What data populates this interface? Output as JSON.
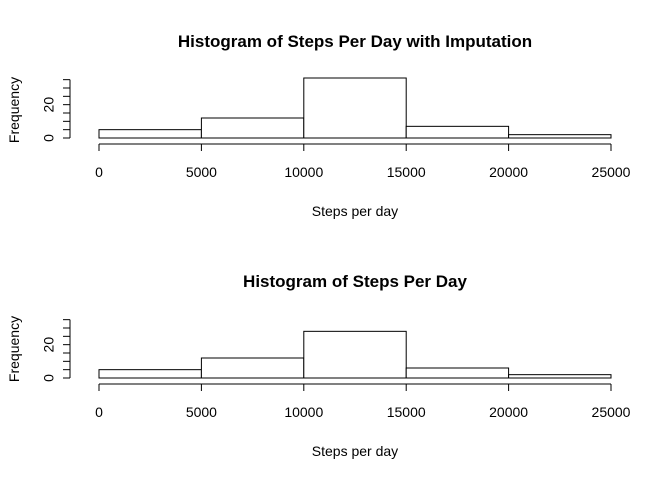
{
  "chart_data": [
    {
      "type": "bar",
      "title": "Histogram of Steps Per Day with Imputation",
      "xlabel": "Steps per day",
      "ylabel": "Frequency",
      "bins": [
        {
          "start": 0,
          "end": 5000,
          "count": 5
        },
        {
          "start": 5000,
          "end": 10000,
          "count": 12
        },
        {
          "start": 10000,
          "end": 15000,
          "count": 36
        },
        {
          "start": 15000,
          "end": 20000,
          "count": 7
        },
        {
          "start": 20000,
          "end": 25000,
          "count": 2
        }
      ],
      "xlim": [
        0,
        25000
      ],
      "ylim": [
        0,
        36
      ],
      "x_ticks": [
        "0",
        "5000",
        "10000",
        "15000",
        "20000",
        "25000"
      ],
      "y_ticks": [
        "0",
        "20"
      ],
      "y_minor_max": 35,
      "grid": false,
      "color": "#ffffff",
      "edge_color": "#000000"
    },
    {
      "type": "bar",
      "title": "Histogram of Steps Per Day",
      "xlabel": "Steps per day",
      "ylabel": "Frequency",
      "bins": [
        {
          "start": 0,
          "end": 5000,
          "count": 5
        },
        {
          "start": 5000,
          "end": 10000,
          "count": 12
        },
        {
          "start": 10000,
          "end": 15000,
          "count": 28
        },
        {
          "start": 15000,
          "end": 20000,
          "count": 6
        },
        {
          "start": 20000,
          "end": 25000,
          "count": 2
        }
      ],
      "xlim": [
        0,
        25000
      ],
      "ylim": [
        0,
        36
      ],
      "x_ticks": [
        "0",
        "5000",
        "10000",
        "15000",
        "20000",
        "25000"
      ],
      "y_ticks": [
        "0",
        "20"
      ],
      "y_minor_max": 35,
      "grid": false,
      "color": "#ffffff",
      "edge_color": "#000000"
    }
  ]
}
